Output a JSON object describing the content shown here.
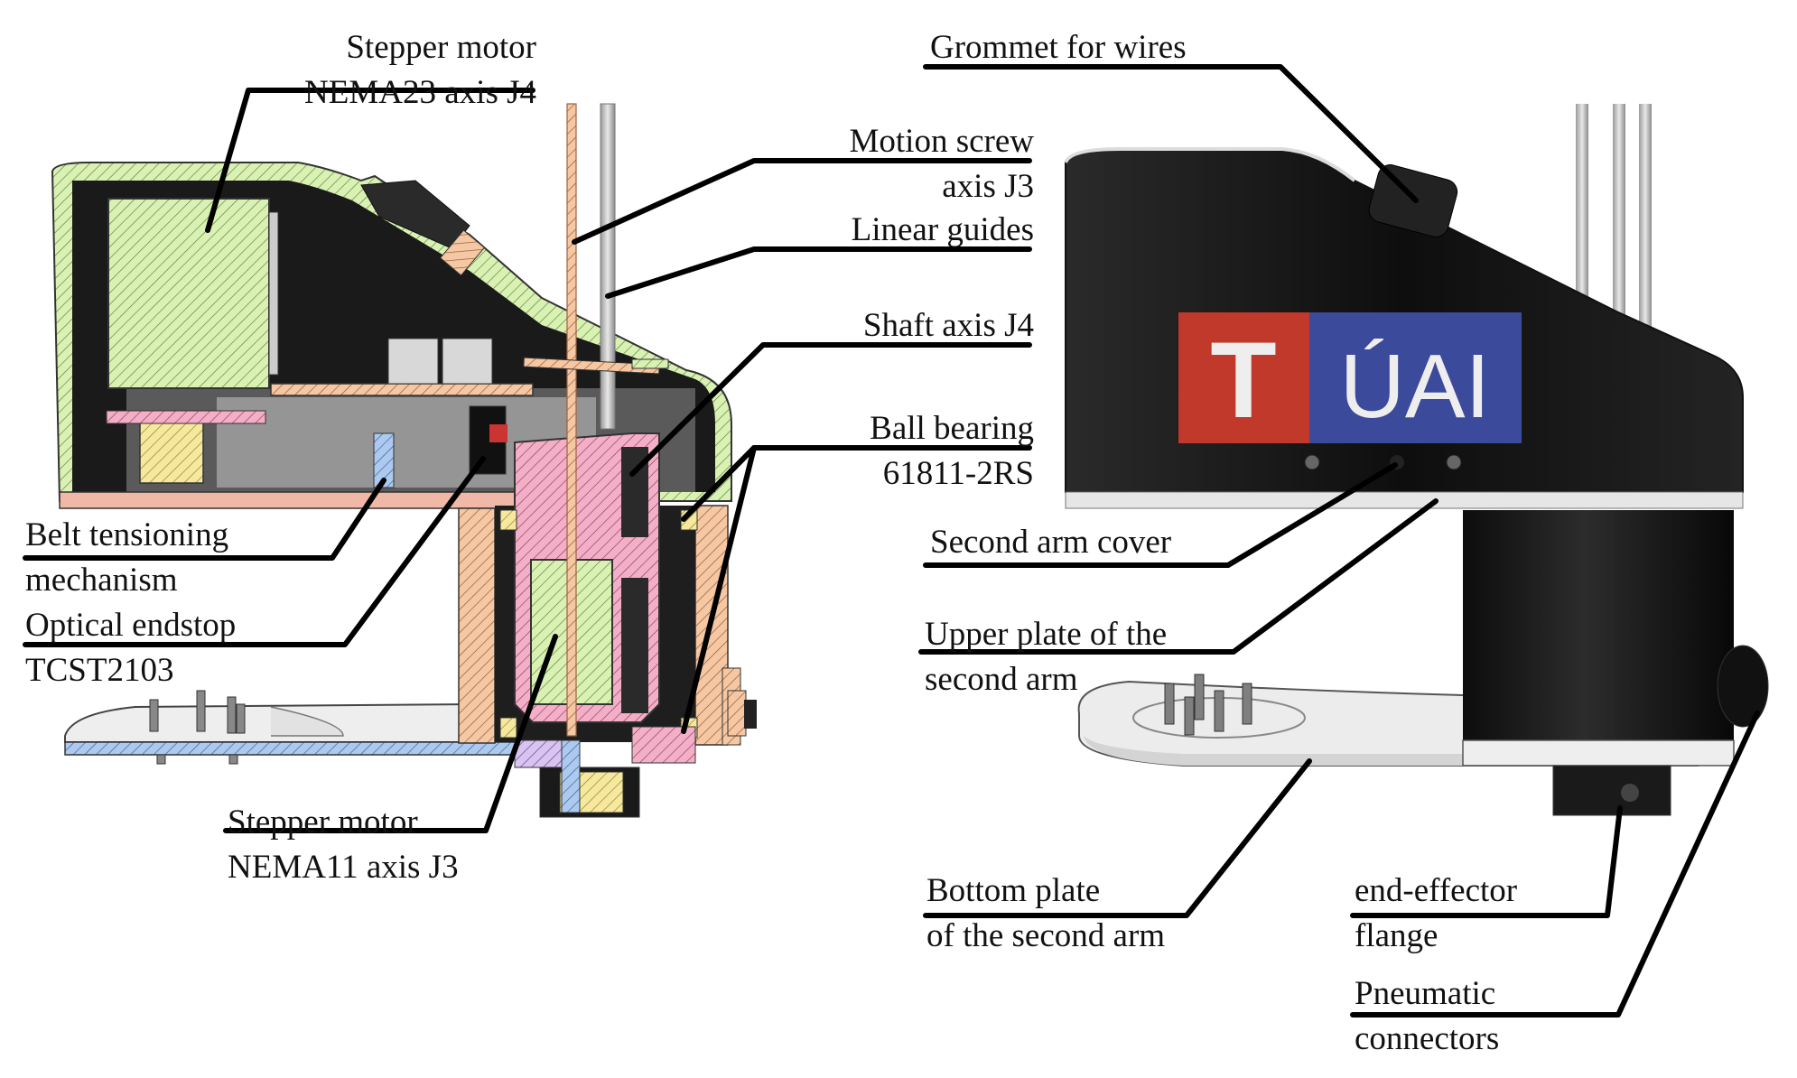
{
  "labels": {
    "stepper_j4": [
      "Stepper motor",
      "NEMA23 axis J4"
    ],
    "motion_screw": [
      "Motion screw",
      "axis J3"
    ],
    "linear_guides": [
      "Linear guides"
    ],
    "shaft_j4": [
      "Shaft axis J4"
    ],
    "ball_bearing": [
      "Ball bearing",
      "61811-2RS"
    ],
    "belt_tensioning": [
      "Belt tensioning",
      "mechanism"
    ],
    "optical_endstop": [
      "Optical endstop",
      "TCST2103"
    ],
    "stepper_j3": [
      "Stepper motor",
      "NEMA11 axis J3"
    ],
    "grommet": [
      "Grommet for wires"
    ],
    "second_arm_cover": [
      "Second arm cover"
    ],
    "upper_plate": [
      "Upper plate of the",
      "second arm"
    ],
    "bottom_plate": [
      "Bottom plate",
      "of the second arm"
    ],
    "end_effector": [
      "end-effector",
      "flange"
    ],
    "pneumatic": [
      "Pneumatic",
      "connectors"
    ]
  },
  "logo": {
    "left": "T",
    "right": "ÚAI",
    "red": "#c0392b",
    "blue": "#3b4a9a"
  },
  "colors": {
    "hatch_green": "#d6f0b0",
    "hatch_pink": "#f2a9c4",
    "hatch_orange": "#f3c4a0",
    "hatch_blue": "#a9c8f0",
    "hatch_yellow": "#f5e79a",
    "housing_black": "#141414",
    "leader_line": "#000000"
  }
}
